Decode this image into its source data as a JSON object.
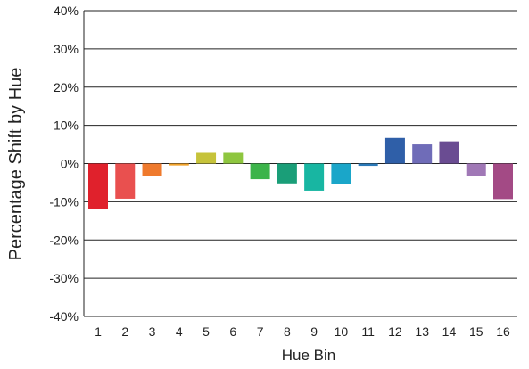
{
  "chart_data": {
    "type": "bar",
    "xlabel": "Hue Bin",
    "ylabel": "Percentage Shift by Hue",
    "ylim": [
      -40,
      40
    ],
    "y_ticks": [
      {
        "value": 40,
        "label": "40%"
      },
      {
        "value": 30,
        "label": "30%"
      },
      {
        "value": 20,
        "label": "20%"
      },
      {
        "value": 10,
        "label": "10%"
      },
      {
        "value": 0,
        "label": "0%"
      },
      {
        "value": -10,
        "label": "-10%"
      },
      {
        "value": -20,
        "label": "-20%"
      },
      {
        "value": -30,
        "label": "-30%"
      },
      {
        "value": -40,
        "label": "-40%"
      }
    ],
    "categories": [
      "1",
      "2",
      "3",
      "4",
      "5",
      "6",
      "7",
      "8",
      "9",
      "10",
      "11",
      "12",
      "13",
      "14",
      "15",
      "16"
    ],
    "values": [
      -12.0,
      -9.2,
      -3.2,
      -0.5,
      2.8,
      2.8,
      -4.1,
      -5.2,
      -7.1,
      -5.3,
      -0.6,
      6.7,
      5.0,
      5.8,
      -3.2,
      -9.3
    ],
    "colors": [
      "#e0212c",
      "#e9504f",
      "#ef7a2d",
      "#f1a22a",
      "#c6c33a",
      "#8ec63f",
      "#3cb44a",
      "#1a9e78",
      "#18b6a2",
      "#1aa6c9",
      "#2b79b8",
      "#2f5fa8",
      "#6f6cb8",
      "#6a4c92",
      "#a078b6",
      "#a34a85"
    ],
    "grid": true
  }
}
